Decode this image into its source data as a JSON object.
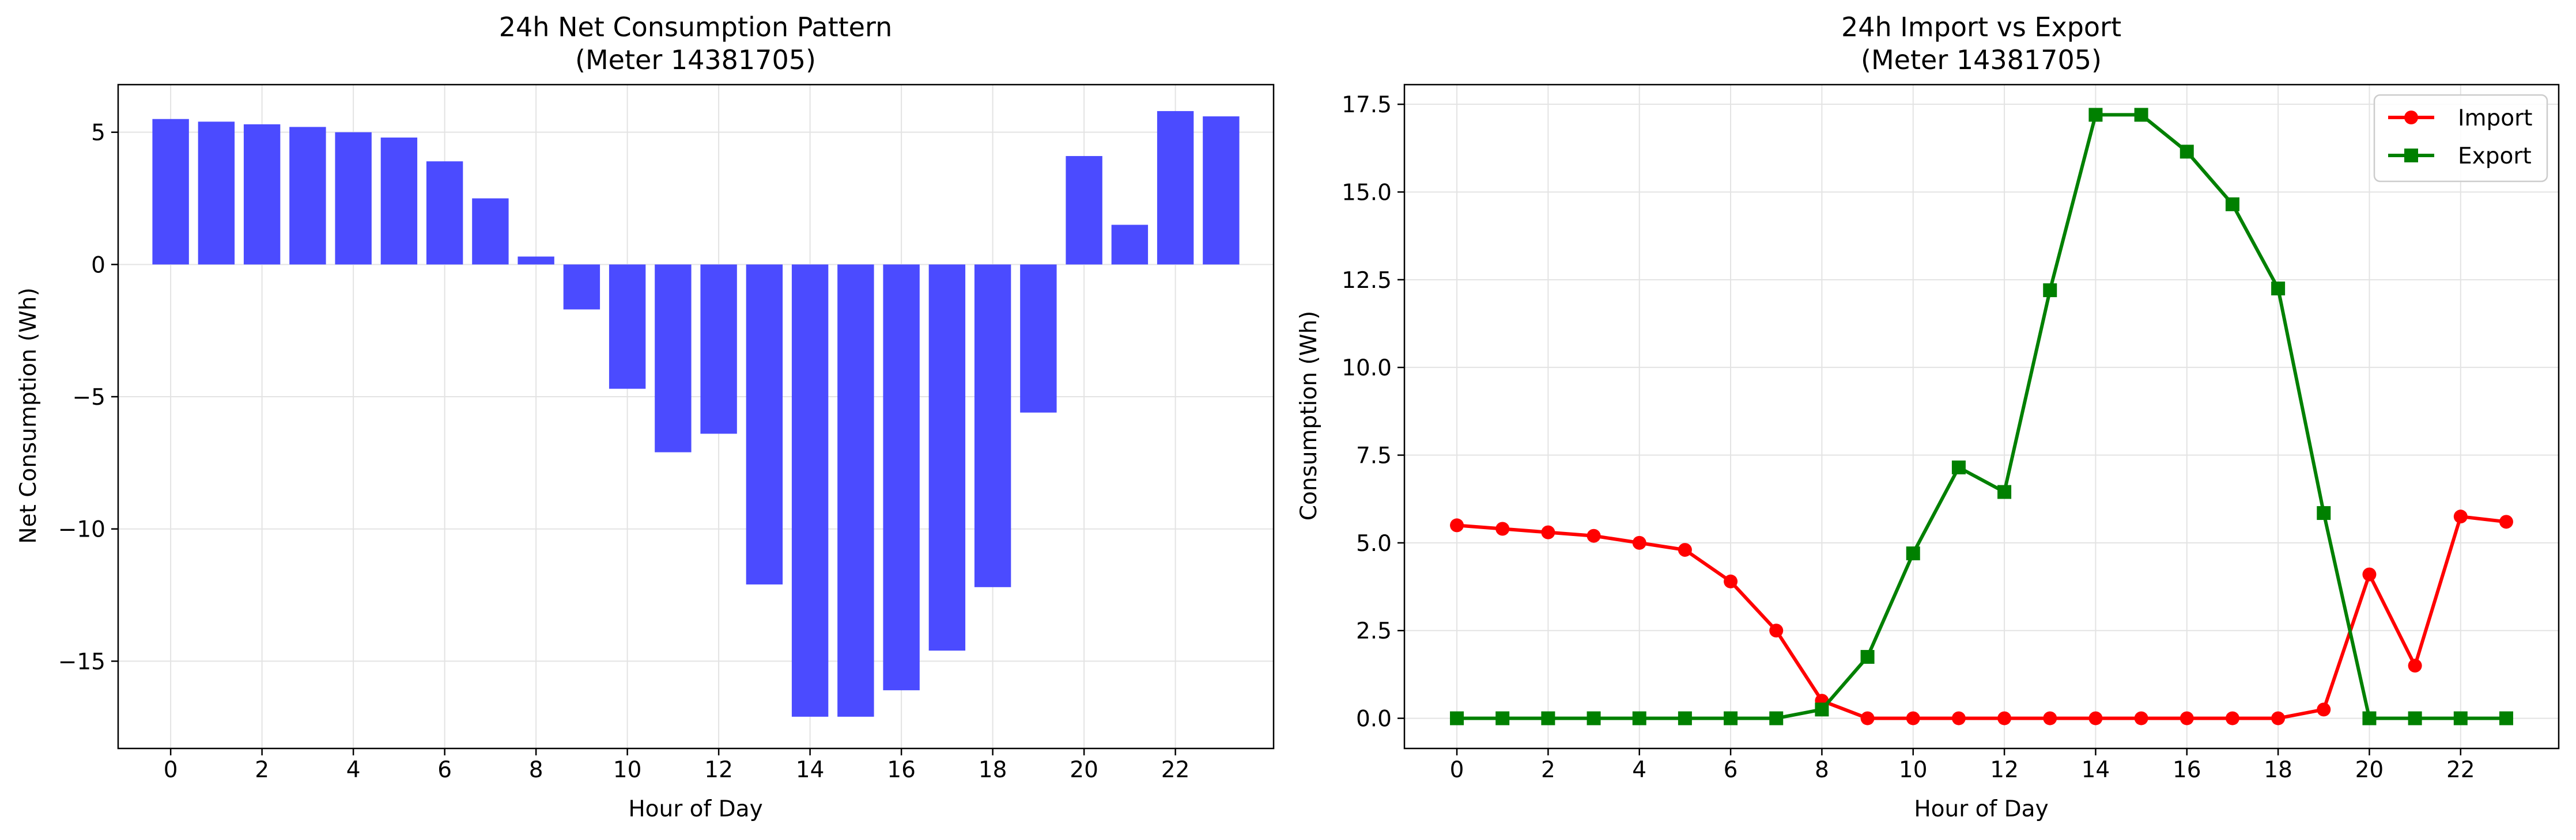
{
  "chart_data": [
    {
      "type": "bar",
      "title": "24h Net Consumption Pattern",
      "subtitle": "(Meter 14381705)",
      "xlabel": "Hour of Day",
      "ylabel": "Net Consumption (Wh)",
      "x": [
        0,
        1,
        2,
        3,
        4,
        5,
        6,
        7,
        8,
        9,
        10,
        11,
        12,
        13,
        14,
        15,
        16,
        17,
        18,
        19,
        20,
        21,
        22,
        23
      ],
      "values": [
        5.5,
        5.4,
        5.3,
        5.2,
        5.0,
        4.8,
        3.9,
        2.5,
        0.3,
        -1.7,
        -4.7,
        -7.1,
        -6.4,
        -12.1,
        -17.1,
        -17.1,
        -16.1,
        -14.6,
        -12.2,
        -5.6,
        4.1,
        1.5,
        5.8,
        5.6
      ],
      "xticks": [
        0,
        2,
        4,
        6,
        8,
        10,
        12,
        14,
        16,
        18,
        20,
        22
      ],
      "yticks": [
        5,
        0,
        -5,
        -10,
        -15
      ],
      "ytick_labels": [
        "5",
        "0",
        "−5",
        "−10",
        "−15"
      ],
      "ylim": [
        -18.3,
        6.8
      ],
      "xlim": [
        -1.15,
        24.15
      ],
      "grid": true,
      "color": "#4b4bff"
    },
    {
      "type": "line",
      "title": "24h Import vs Export",
      "subtitle": "(Meter 14381705)",
      "xlabel": "Hour of Day",
      "ylabel": "Consumption (Wh)",
      "x": [
        0,
        1,
        2,
        3,
        4,
        5,
        6,
        7,
        8,
        9,
        10,
        11,
        12,
        13,
        14,
        15,
        16,
        17,
        18,
        19,
        20,
        21,
        22,
        23
      ],
      "series": [
        {
          "name": "Import",
          "color": "#ff0000",
          "marker": "circle",
          "values": [
            5.5,
            5.4,
            5.3,
            5.2,
            5.0,
            4.8,
            3.9,
            2.5,
            0.5,
            0.0,
            0.0,
            0.0,
            0.0,
            0.0,
            0.0,
            0.0,
            0.0,
            0.0,
            0.0,
            0.25,
            4.1,
            1.5,
            5.75,
            5.6
          ]
        },
        {
          "name": "Export",
          "color": "#008000",
          "marker": "square",
          "values": [
            0.0,
            0.0,
            0.0,
            0.0,
            0.0,
            0.0,
            0.0,
            0.0,
            0.25,
            1.75,
            4.7,
            7.15,
            6.45,
            12.2,
            17.2,
            17.2,
            16.15,
            14.65,
            12.25,
            5.85,
            0.0,
            0.0,
            0.0,
            0.0
          ]
        }
      ],
      "xticks": [
        0,
        2,
        4,
        6,
        8,
        10,
        12,
        14,
        16,
        18,
        20,
        22
      ],
      "yticks": [
        0,
        2.5,
        5,
        7.5,
        10,
        12.5,
        15,
        17.5
      ],
      "ytick_labels": [
        "0.0",
        "2.5",
        "5.0",
        "7.5",
        "10.0",
        "12.5",
        "15.0",
        "17.5"
      ],
      "ylim": [
        -0.86,
        18.06
      ],
      "xlim": [
        -1.15,
        24.15
      ],
      "grid": true,
      "legend": "top-right"
    }
  ]
}
